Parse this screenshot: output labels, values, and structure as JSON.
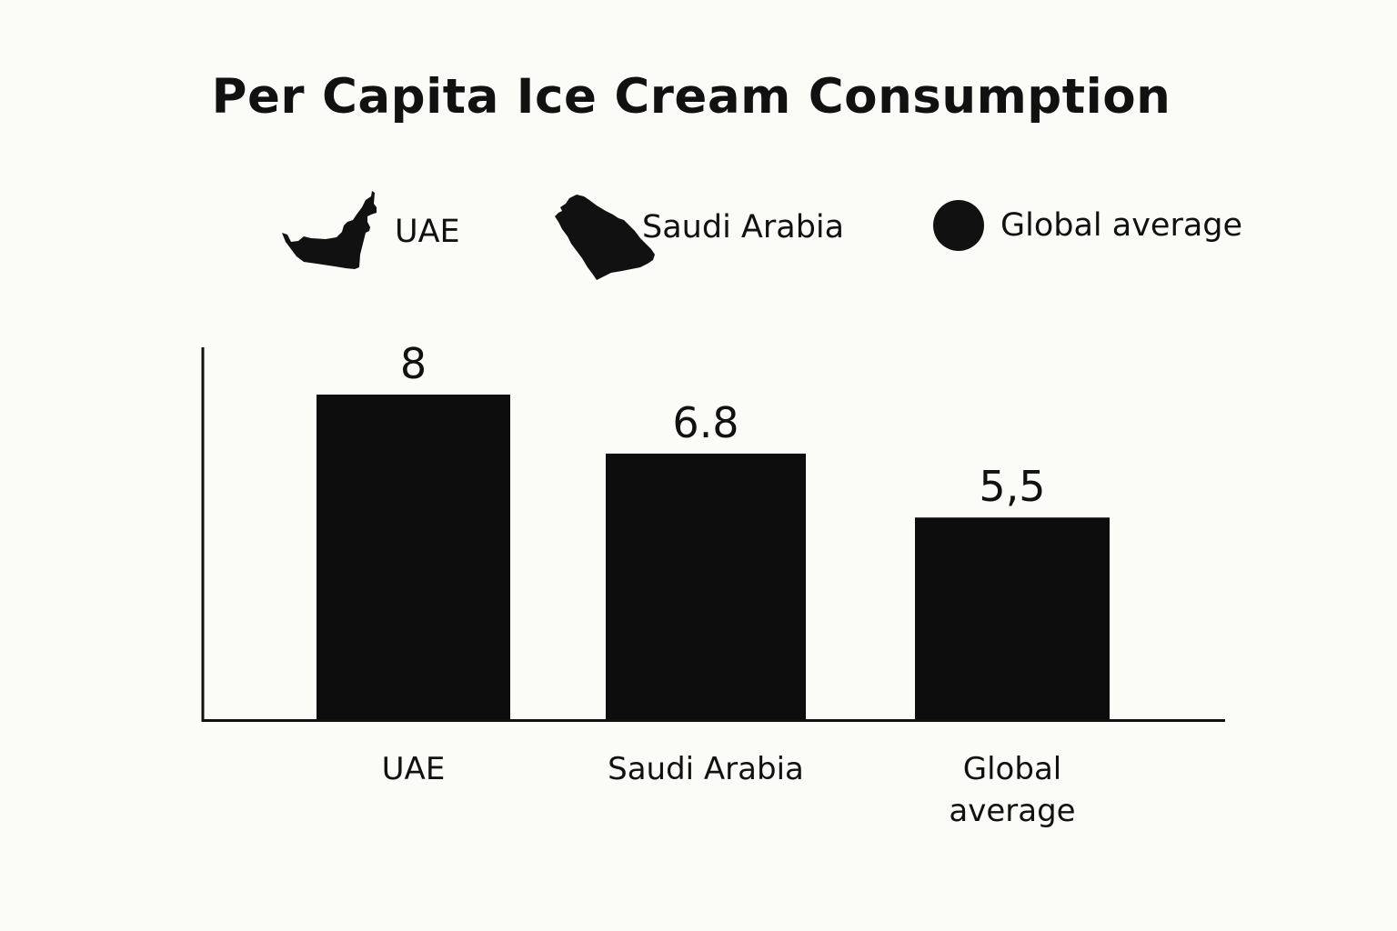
{
  "chart_data": {
    "type": "bar",
    "title": "Per Capita Ice Cream Consumption",
    "categories": [
      "UAE",
      "Saudi Arabia",
      "Global average"
    ],
    "category_label_lines": [
      [
        "UAE"
      ],
      [
        "Saudi Arabia"
      ],
      [
        "Global",
        "average"
      ]
    ],
    "values": [
      8,
      6.8,
      5.5
    ],
    "value_labels": [
      "8",
      "6.8",
      "5,5"
    ],
    "xlabel": "",
    "ylabel": "",
    "ylim": [
      1.4,
      8
    ],
    "grid": false,
    "legend": {
      "placement": "top",
      "entries": [
        {
          "label": "UAE",
          "icon": "uae-map-icon"
        },
        {
          "label": "Saudi Arabia",
          "icon": "saudi-arabia-map-icon"
        },
        {
          "label": "Global average",
          "icon": "circle-icon"
        }
      ]
    },
    "colors": {
      "bar": "#0d0d0d",
      "axis": "#111111",
      "background": "#fbfbf8"
    }
  }
}
